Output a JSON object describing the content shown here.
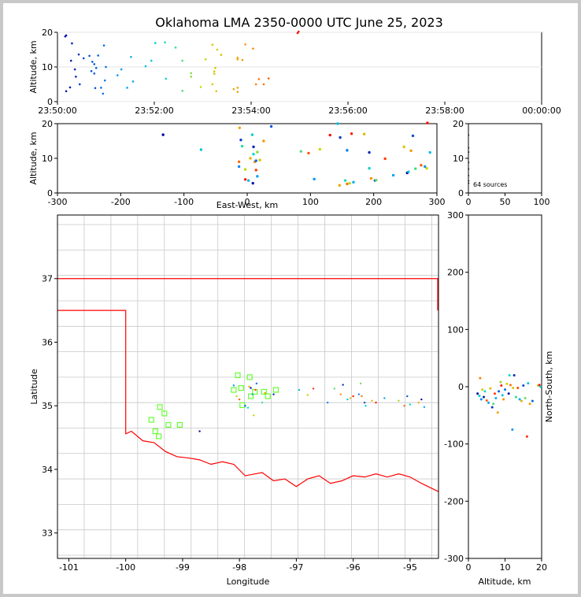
{
  "title": "Oklahoma LMA 2350-0000 UTC June 25, 2023",
  "colors": {
    "border_state": "#ff0000",
    "counties": "#c8c8c8",
    "station": "#66ff33",
    "axis": "#000000"
  },
  "chart_data": [
    {
      "id": "time_height",
      "type": "scatter",
      "ylabel": "Altitude, km",
      "ylim": [
        0,
        20
      ],
      "yticks": [
        0,
        10,
        20
      ],
      "xticks": [
        "23:50:00",
        "23:52:00",
        "23:54:00",
        "23:56:00",
        "23:58:00",
        "00:00:00"
      ],
      "color_by": "time",
      "x_units": "minutes after 23:50:00",
      "points": [
        [
          0.8,
          18.8
        ],
        [
          0.9,
          19.1
        ],
        [
          1.5,
          16.8
        ],
        [
          2.2,
          13.6
        ],
        [
          2.7,
          12.5
        ],
        [
          3.3,
          13.2
        ],
        [
          3.6,
          11.5
        ],
        [
          3.8,
          10.8
        ],
        [
          4.2,
          13.3
        ],
        [
          4.8,
          16.2
        ],
        [
          1.4,
          11.8
        ],
        [
          1.8,
          9.3
        ],
        [
          1.9,
          7.2
        ],
        [
          2.3,
          5.0
        ],
        [
          3.5,
          8.8
        ],
        [
          3.8,
          8.1
        ],
        [
          4.0,
          9.7
        ],
        [
          0.9,
          3.0
        ],
        [
          1.3,
          4.1
        ],
        [
          3.9,
          3.9
        ],
        [
          4.5,
          4.0
        ],
        [
          4.7,
          2.3
        ],
        [
          4.9,
          6.1
        ],
        [
          5.0,
          10.0
        ],
        [
          6.2,
          7.6
        ],
        [
          6.6,
          9.3
        ],
        [
          7.2,
          4.0
        ],
        [
          7.6,
          12.9
        ],
        [
          7.8,
          5.8
        ],
        [
          9.1,
          10.2
        ],
        [
          9.7,
          11.8
        ],
        [
          10.1,
          16.9
        ],
        [
          11.1,
          17.1
        ],
        [
          11.2,
          6.6
        ],
        [
          12.2,
          15.6
        ],
        [
          12.9,
          11.8
        ],
        [
          12.9,
          3.1
        ],
        [
          13.8,
          7.2
        ],
        [
          13.8,
          8.2
        ],
        [
          14.8,
          4.2
        ],
        [
          15.3,
          12.2
        ],
        [
          16.0,
          16.4
        ],
        [
          16.0,
          5.0
        ],
        [
          16.2,
          8.7
        ],
        [
          16.2,
          8.0
        ],
        [
          16.3,
          9.7
        ],
        [
          16.4,
          3.0
        ],
        [
          16.5,
          15.0
        ],
        [
          16.9,
          13.5
        ],
        [
          18.2,
          3.6
        ],
        [
          18.6,
          4.0
        ],
        [
          18.6,
          12.7
        ],
        [
          18.6,
          12.2
        ],
        [
          18.6,
          2.8
        ],
        [
          19.1,
          12.0
        ],
        [
          19.4,
          16.5
        ],
        [
          20.2,
          15.3
        ],
        [
          20.5,
          5.0
        ],
        [
          20.8,
          6.5
        ],
        [
          21.3,
          5.0
        ],
        [
          21.8,
          6.7
        ],
        [
          24.8,
          19.8
        ],
        [
          24.9,
          20.2
        ]
      ]
    },
    {
      "id": "east_west_altitude",
      "type": "scatter",
      "xlabel": "East-West, km",
      "ylabel": "Altitude, km",
      "xlim": [
        -300,
        300
      ],
      "ylim": [
        0,
        20
      ],
      "xticks": [
        -300,
        -200,
        -100,
        0,
        100,
        200,
        300
      ],
      "yticks": [
        0,
        10,
        20
      ],
      "points": [
        [
          -133,
          16.8
        ],
        [
          -73,
          12.5
        ],
        [
          -12,
          18.8
        ],
        [
          -10,
          15.3
        ],
        [
          -8,
          13.5
        ],
        [
          -13,
          9.0
        ],
        [
          -13,
          7.6
        ],
        [
          -3,
          6.8
        ],
        [
          -3,
          3.9
        ],
        [
          2,
          3.6
        ],
        [
          5,
          10.0
        ],
        [
          10,
          13.3
        ],
        [
          10,
          11.2
        ],
        [
          12,
          9.0
        ],
        [
          14,
          9.3
        ],
        [
          16,
          11.8
        ],
        [
          14,
          6.6
        ],
        [
          16,
          4.8
        ],
        [
          20,
          9.5
        ],
        [
          9,
          2.8
        ],
        [
          8,
          16.8
        ],
        [
          26,
          15.0
        ],
        [
          38,
          19.2
        ],
        [
          85,
          12.0
        ],
        [
          97,
          11.5
        ],
        [
          106,
          4.0
        ],
        [
          115,
          12.6
        ],
        [
          131,
          16.7
        ],
        [
          143,
          20.0
        ],
        [
          146,
          2.2
        ],
        [
          147,
          16.0
        ],
        [
          155,
          3.6
        ],
        [
          158,
          2.6
        ],
        [
          158,
          12.3
        ],
        [
          162,
          2.8
        ],
        [
          165,
          17.1
        ],
        [
          168,
          3.1
        ],
        [
          185,
          17.0
        ],
        [
          193,
          11.7
        ],
        [
          193,
          7.1
        ],
        [
          196,
          4.2
        ],
        [
          202,
          3.6
        ],
        [
          204,
          3.7
        ],
        [
          218,
          9.9
        ],
        [
          231,
          5.1
        ],
        [
          248,
          13.3
        ],
        [
          253,
          5.8
        ],
        [
          255,
          6.1
        ],
        [
          259,
          12.2
        ],
        [
          262,
          16.5
        ],
        [
          266,
          7.0
        ],
        [
          275,
          8.0
        ],
        [
          281,
          7.6
        ],
        [
          284,
          7.1
        ],
        [
          285,
          20.2
        ],
        [
          289,
          11.7
        ]
      ]
    },
    {
      "id": "altitude_histogram",
      "type": "scatter",
      "xlim": [
        0,
        100
      ],
      "ylim": [
        0,
        20
      ],
      "xticks": [
        0,
        50,
        100
      ],
      "yticks": [
        0,
        10,
        20
      ],
      "annotation": "64 sources",
      "points": [
        [
          0.3,
          16.7
        ],
        [
          0.3,
          13.0
        ],
        [
          0.3,
          11.8
        ],
        [
          0.3,
          8.8
        ],
        [
          0.3,
          6.9
        ],
        [
          0.3,
          5.0
        ],
        [
          0.3,
          3.5
        ],
        [
          0.3,
          2.8
        ]
      ]
    },
    {
      "id": "plan_view",
      "type": "scatter",
      "xlabel": "Longitude",
      "ylabel": "Latitude",
      "xlim": [
        -101.2,
        -94.5
      ],
      "ylim": [
        32.6,
        38.0
      ],
      "xticks": [
        -101,
        -100,
        -99,
        -98,
        -97,
        -96,
        -95
      ],
      "yticks": [
        33,
        34,
        35,
        36,
        37
      ],
      "stations": [
        [
          -98.03,
          35.48
        ],
        [
          -97.82,
          35.45
        ],
        [
          -98.1,
          35.25
        ],
        [
          -97.97,
          35.28
        ],
        [
          -97.73,
          35.22
        ],
        [
          -97.57,
          35.22
        ],
        [
          -97.36,
          35.25
        ],
        [
          -97.5,
          35.15
        ],
        [
          -97.8,
          35.15
        ],
        [
          -97.95,
          35.01
        ],
        [
          -99.4,
          34.98
        ],
        [
          -99.32,
          34.88
        ],
        [
          -99.55,
          34.78
        ],
        [
          -99.25,
          34.7
        ],
        [
          -99.05,
          34.7
        ],
        [
          -99.48,
          34.6
        ],
        [
          -99.42,
          34.52
        ]
      ],
      "points": [
        [
          -98.7,
          34.6
        ],
        [
          -98.1,
          35.32
        ],
        [
          -98.05,
          35.15
        ],
        [
          -98.0,
          35.1
        ],
        [
          -97.9,
          35.0
        ],
        [
          -97.85,
          34.97
        ],
        [
          -97.83,
          35.3
        ],
        [
          -97.8,
          35.28
        ],
        [
          -97.77,
          35.18
        ],
        [
          -97.75,
          34.85
        ],
        [
          -97.72,
          35.25
        ],
        [
          -97.7,
          35.35
        ],
        [
          -97.6,
          35.05
        ],
        [
          -97.55,
          35.2
        ],
        [
          -97.4,
          35.18
        ],
        [
          -96.95,
          35.25
        ],
        [
          -96.8,
          35.17
        ],
        [
          -96.7,
          35.27
        ],
        [
          -96.45,
          35.05
        ],
        [
          -96.33,
          35.27
        ],
        [
          -96.22,
          35.18
        ],
        [
          -96.18,
          35.33
        ],
        [
          -96.1,
          35.1
        ],
        [
          -96.05,
          35.12
        ],
        [
          -96.0,
          35.15
        ],
        [
          -95.9,
          35.18
        ],
        [
          -95.87,
          35.35
        ],
        [
          -95.85,
          35.15
        ],
        [
          -95.8,
          35.05
        ],
        [
          -95.78,
          35.0
        ],
        [
          -95.67,
          35.08
        ],
        [
          -95.6,
          35.05
        ],
        [
          -95.45,
          35.12
        ],
        [
          -95.2,
          35.08
        ],
        [
          -95.1,
          35.0
        ],
        [
          -95.05,
          35.15
        ],
        [
          -95.0,
          35.02
        ],
        [
          -94.85,
          35.05
        ],
        [
          -94.8,
          35.1
        ],
        [
          -94.75,
          34.98
        ]
      ]
    },
    {
      "id": "altitude_north_south",
      "type": "scatter",
      "xlabel": "Altitude, km",
      "ylabel": "North-South, km",
      "xlim": [
        0,
        20
      ],
      "ylim": [
        -300,
        300
      ],
      "xticks": [
        0,
        10,
        20
      ],
      "yticks": [
        -300,
        -200,
        -100,
        0,
        100,
        200,
        300
      ],
      "points": [
        [
          2.5,
          -12
        ],
        [
          3,
          -16
        ],
        [
          3.2,
          15
        ],
        [
          3.5,
          -22
        ],
        [
          3.8,
          -5
        ],
        [
          4.2,
          -18
        ],
        [
          4.5,
          -8
        ],
        [
          5,
          -24
        ],
        [
          5.5,
          -28
        ],
        [
          6,
          -3
        ],
        [
          6.5,
          -36
        ],
        [
          6.8,
          -30
        ],
        [
          7.2,
          -12
        ],
        [
          7.5,
          -20
        ],
        [
          8,
          -45
        ],
        [
          8.3,
          -8
        ],
        [
          8.8,
          8
        ],
        [
          9,
          2
        ],
        [
          9.3,
          -15
        ],
        [
          9.6,
          -22
        ],
        [
          10,
          -5
        ],
        [
          10.5,
          5
        ],
        [
          11,
          -12
        ],
        [
          11.2,
          20
        ],
        [
          11.5,
          3
        ],
        [
          12,
          -75
        ],
        [
          12.2,
          -2
        ],
        [
          12.5,
          20
        ],
        [
          13,
          -18
        ],
        [
          13.5,
          -2
        ],
        [
          14,
          -22
        ],
        [
          14.5,
          -25
        ],
        [
          15,
          2
        ],
        [
          15.5,
          -20
        ],
        [
          16,
          -87
        ],
        [
          16.3,
          6
        ],
        [
          16.8,
          -30
        ],
        [
          17.5,
          -25
        ],
        [
          19,
          2
        ],
        [
          19.4,
          3
        ],
        [
          19.7,
          0
        ]
      ]
    }
  ]
}
